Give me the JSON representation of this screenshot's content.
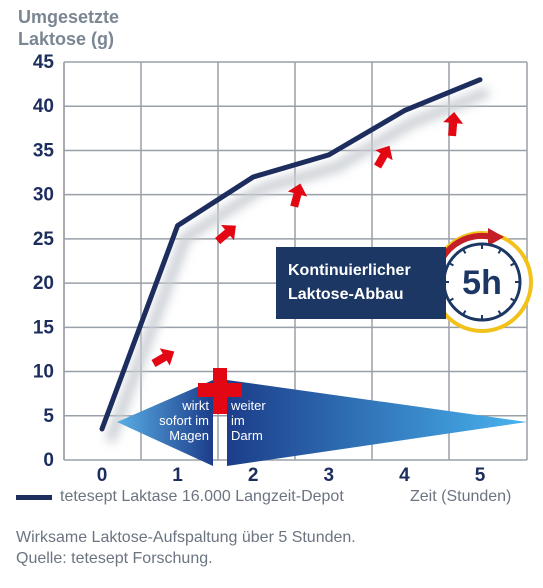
{
  "chart_data": {
    "type": "line",
    "ylabel_lines": [
      "Umgesetzte",
      "Laktose (g)"
    ],
    "xlabel": "Zeit (Stunden)",
    "xlim": [
      0,
      5
    ],
    "ylim": [
      0,
      45
    ],
    "xticks": [
      "0",
      "1",
      "2",
      "3",
      "4",
      "5"
    ],
    "yticks": [
      "0",
      "5",
      "10",
      "15",
      "20",
      "25",
      "30",
      "35",
      "40",
      "45"
    ],
    "grid": true,
    "legend_position": "bottom",
    "series": [
      {
        "name": "tetesept Laktase 16.000 Langzeit-Depot",
        "color": "#1c2d5e",
        "x": [
          0,
          1,
          2,
          3,
          4,
          5
        ],
        "y": [
          3.5,
          26.5,
          32,
          34.5,
          39.5,
          43
        ]
      }
    ]
  },
  "annotations": {
    "promo_box": {
      "lines": [
        "Kontinuierlicher",
        "Laktose-Abbau"
      ]
    },
    "clock_badge": {
      "text": "5h"
    },
    "stomach_label": [
      "wirkt",
      "sofort im",
      "Magen"
    ],
    "intestine_label": [
      "weiter",
      "im",
      "Darm"
    ]
  },
  "footer": [
    "Wirksame Laktose-Aufspaltung über 5 Stunden.",
    "Quelle: tetesept Forschung."
  ],
  "colors": {
    "line": "#1c2d5e",
    "grid": "#9aa0a8",
    "tick_text": "#1c2d5e",
    "accent_red": "#e30613",
    "clock_yellow": "#f3c21a",
    "promo_bg": "#1c3764"
  }
}
